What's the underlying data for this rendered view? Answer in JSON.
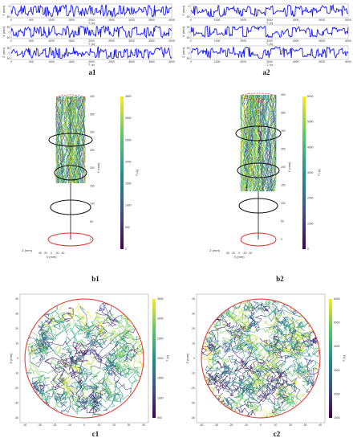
{
  "panels": {
    "a1": {
      "label": "a1",
      "plots": [
        {
          "ylabel": "Y (mm)",
          "xlabel": "T (s)",
          "yticks": [
            "0",
            "-50"
          ]
        },
        {
          "ylabel": "X (mm)",
          "xlabel": "T (s)",
          "yticks": [
            "50",
            "0",
            "-50"
          ]
        },
        {
          "ylabel": "Z (mm)",
          "xlabel": "T (s)",
          "yticks": [
            "50",
            "0",
            "-50"
          ]
        }
      ],
      "xticks": [
        "0",
        "500",
        "1000",
        "1500",
        "2000",
        "2500",
        "3000",
        "3500",
        "4000"
      ]
    },
    "a2": {
      "label": "a2",
      "plots": [
        {
          "ylabel": "Y (mm)",
          "xlabel": "T (s)",
          "yticks": [
            "0",
            "-50"
          ]
        },
        {
          "ylabel": "X (mm)",
          "xlabel": "T (s)",
          "yticks": [
            "50",
            "0",
            "-50"
          ]
        },
        {
          "ylabel": "Z (mm)",
          "xlabel": "T (s)",
          "yticks": [
            "50",
            "0",
            "-50"
          ]
        }
      ],
      "xticks": [
        "0",
        "1000",
        "2000",
        "3000",
        "4000",
        "5000",
        "6000"
      ]
    },
    "b1": {
      "label": "b1",
      "zlabel": "Y (mm)",
      "xlabel": "X (mm)",
      "ylabel": "Z (mm)",
      "zticks": [
        "400",
        "350",
        "300",
        "250",
        "200",
        "150",
        "100",
        "50",
        "0"
      ],
      "xticks": [
        "40",
        "20",
        "0",
        "-20",
        "-40"
      ],
      "colorbar_label": "T (s)",
      "colorbar_ticks": [
        "3500",
        "3000",
        "2500",
        "2000",
        "1500",
        "1000",
        "500",
        "0"
      ]
    },
    "b2": {
      "label": "b2",
      "zlabel": "Y (mm)",
      "xlabel": "X (mm)",
      "ylabel": "Z (mm)",
      "zticks": [
        "400",
        "350",
        "300",
        "250",
        "200",
        "150",
        "100",
        "50",
        "0"
      ],
      "xticks": [
        "40",
        "20",
        "0",
        "-20",
        "-40"
      ],
      "colorbar_label": "T (s)",
      "colorbar_ticks": [
        "6000",
        "5000",
        "4000",
        "3000",
        "2000",
        "1000",
        "0"
      ]
    },
    "c1": {
      "label": "c1",
      "xlabel": "X (mm)",
      "ylabel": "Z (mm)",
      "ticks": [
        "-40",
        "-30",
        "-20",
        "-10",
        "0",
        "10",
        "20",
        "30",
        "40"
      ],
      "colorbar_label": "T (s)",
      "colorbar_ticks": [
        "3500",
        "3000",
        "2500",
        "2000",
        "1500",
        "1000",
        "500"
      ]
    },
    "c2": {
      "label": "c2",
      "xlabel": "X (mm)",
      "ylabel": "Z (mm)",
      "ticks": [
        "-40",
        "-30",
        "-20",
        "-10",
        "0",
        "10",
        "20",
        "30",
        "40"
      ],
      "colorbar_label": "T (s)",
      "colorbar_ticks": [
        "6000",
        "5000",
        "4000",
        "3000",
        "2000",
        "1000"
      ]
    }
  },
  "colors": {
    "trace": "#1a1aff",
    "circle": "#e0302a",
    "ring": "#111111",
    "viridis": [
      "#440154",
      "#3b528b",
      "#21918c",
      "#5ec962",
      "#fde725"
    ]
  }
}
